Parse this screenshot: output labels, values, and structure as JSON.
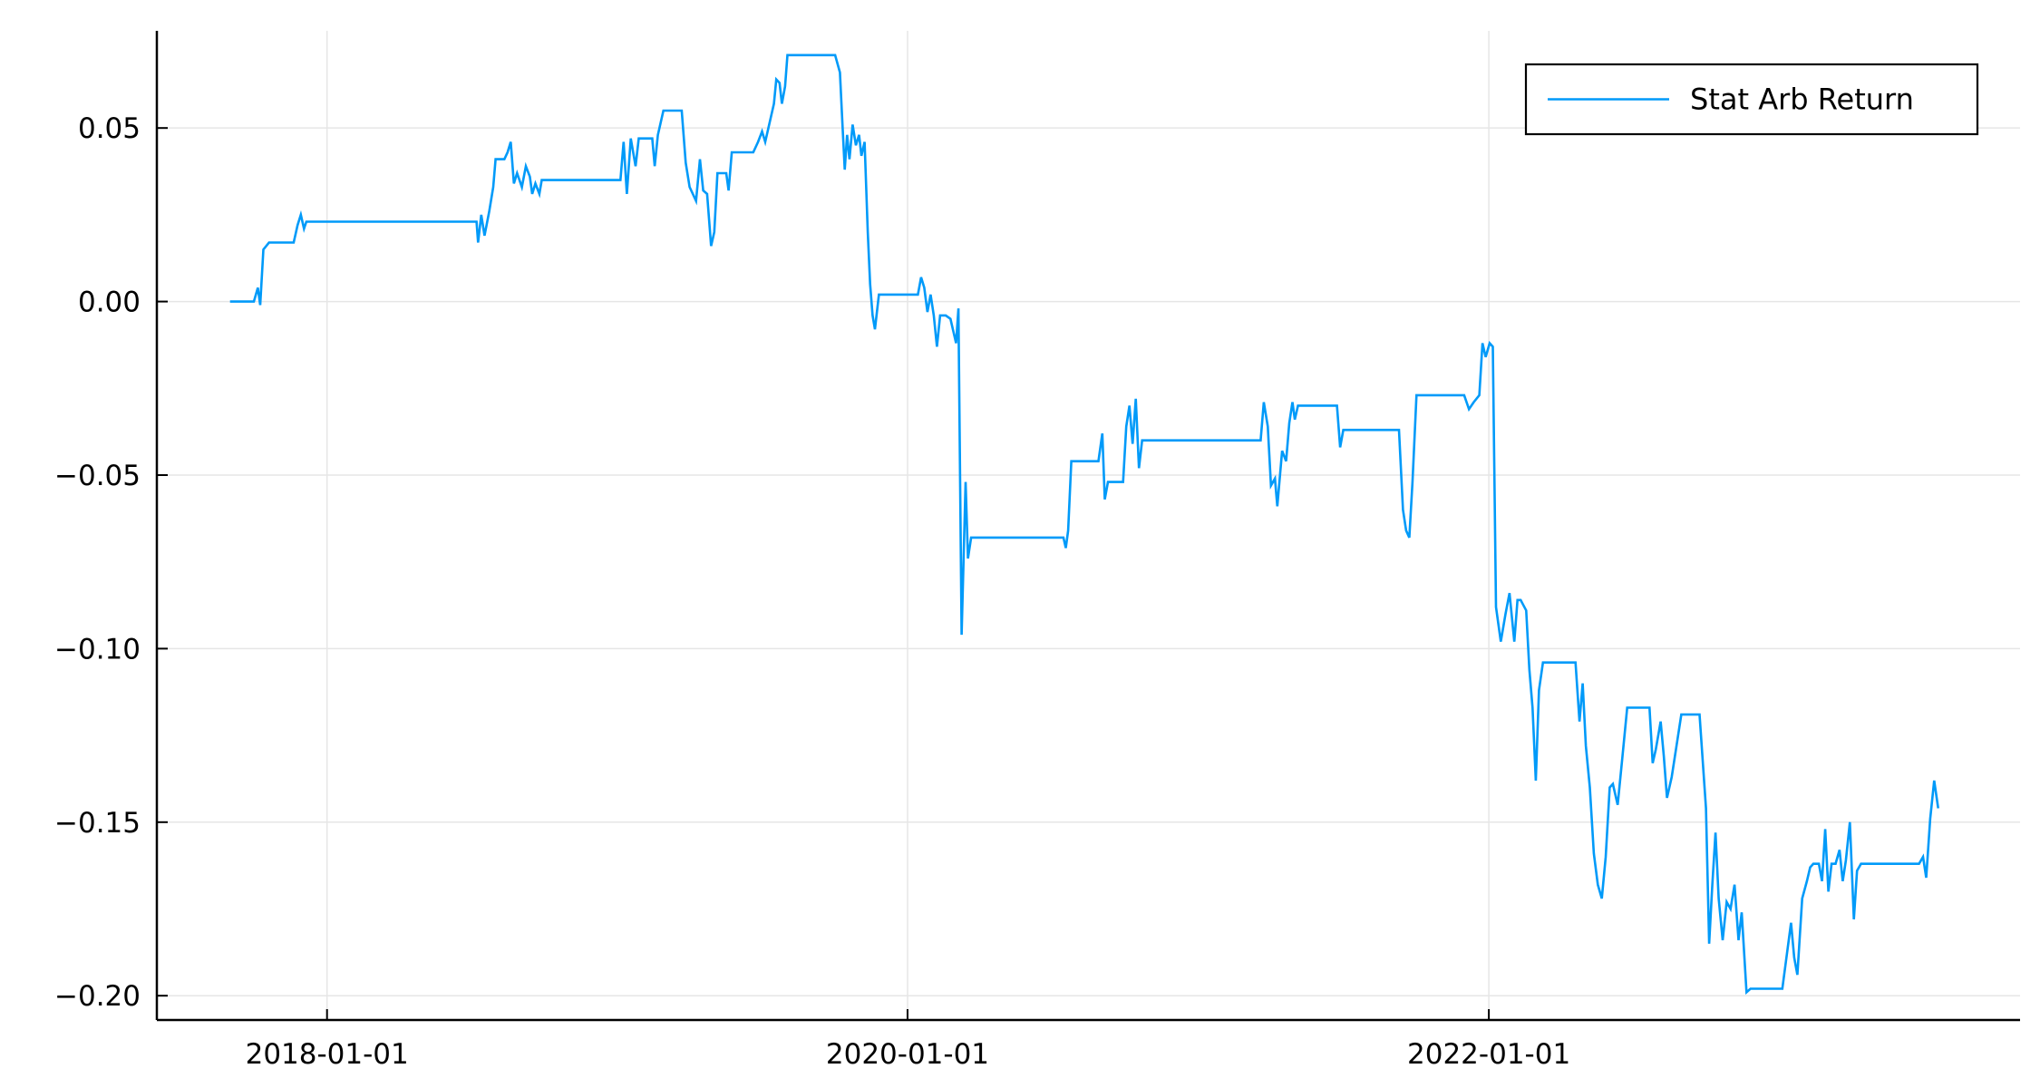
{
  "chart_data": {
    "type": "line",
    "title": "",
    "xlabel": "",
    "ylabel": "",
    "x_axis_type": "date",
    "xlim": [
      "2017-06-01",
      "2023-10-31"
    ],
    "ylim": [
      -0.207,
      0.078
    ],
    "x_ticks": [
      "2018-01-01",
      "2020-01-01",
      "2022-01-01"
    ],
    "x_tick_labels": [
      "2018-01-01",
      "2020-01-01",
      "2022-01-01"
    ],
    "y_ticks": [
      0.05,
      0.0,
      -0.05,
      -0.1,
      -0.15,
      -0.2
    ],
    "y_tick_labels": [
      "0.05",
      "0.00",
      "−0.05",
      "−0.10",
      "−0.15",
      "−0.20"
    ],
    "grid": true,
    "legend_position": "top-right",
    "colors": {
      "series": "#009af9",
      "axis": "#000000",
      "grid": "#e6e6e6"
    },
    "series": [
      {
        "name": "Stat Arb Return",
        "points": [
          [
            "2017-09-01",
            0.0
          ],
          [
            "2017-10-01",
            0.0
          ],
          [
            "2017-10-06",
            0.004
          ],
          [
            "2017-10-09",
            -0.001
          ],
          [
            "2017-10-13",
            0.015
          ],
          [
            "2017-10-20",
            0.017
          ],
          [
            "2017-11-15",
            0.017
          ],
          [
            "2017-11-20",
            0.017
          ],
          [
            "2017-11-25",
            0.022
          ],
          [
            "2017-11-29",
            0.025
          ],
          [
            "2017-12-03",
            0.021
          ],
          [
            "2017-12-06",
            0.023
          ],
          [
            "2018-03-01",
            0.023
          ],
          [
            "2018-06-01",
            0.023
          ],
          [
            "2018-07-08",
            0.023
          ],
          [
            "2018-07-10",
            0.017
          ],
          [
            "2018-07-14",
            0.025
          ],
          [
            "2018-07-18",
            0.019
          ],
          [
            "2018-07-24",
            0.026
          ],
          [
            "2018-07-29",
            0.033
          ],
          [
            "2018-08-01",
            0.041
          ],
          [
            "2018-08-12",
            0.041
          ],
          [
            "2018-08-16",
            0.043
          ],
          [
            "2018-08-20",
            0.046
          ],
          [
            "2018-08-24",
            0.034
          ],
          [
            "2018-08-28",
            0.037
          ],
          [
            "2018-09-03",
            0.033
          ],
          [
            "2018-09-08",
            0.039
          ],
          [
            "2018-09-13",
            0.036
          ],
          [
            "2018-09-16",
            0.031
          ],
          [
            "2018-09-20",
            0.034
          ],
          [
            "2018-09-25",
            0.031
          ],
          [
            "2018-09-28",
            0.035
          ],
          [
            "2018-12-01",
            0.035
          ],
          [
            "2019-01-05",
            0.035
          ],
          [
            "2019-01-09",
            0.046
          ],
          [
            "2019-01-13",
            0.031
          ],
          [
            "2019-01-18",
            0.047
          ],
          [
            "2019-01-24",
            0.039
          ],
          [
            "2019-01-28",
            0.047
          ],
          [
            "2019-02-05",
            0.047
          ],
          [
            "2019-02-14",
            0.047
          ],
          [
            "2019-02-17",
            0.039
          ],
          [
            "2019-02-21",
            0.048
          ],
          [
            "2019-02-28",
            0.055
          ],
          [
            "2019-03-23",
            0.055
          ],
          [
            "2019-03-28",
            0.04
          ],
          [
            "2019-04-02",
            0.033
          ],
          [
            "2019-04-10",
            0.029
          ],
          [
            "2019-04-15",
            0.041
          ],
          [
            "2019-04-19",
            0.032
          ],
          [
            "2019-04-24",
            0.031
          ],
          [
            "2019-04-29",
            0.016
          ],
          [
            "2019-05-03",
            0.02
          ],
          [
            "2019-05-07",
            0.037
          ],
          [
            "2019-05-18",
            0.037
          ],
          [
            "2019-05-21",
            0.032
          ],
          [
            "2019-05-25",
            0.043
          ],
          [
            "2019-06-21",
            0.043
          ],
          [
            "2019-06-27",
            0.046
          ],
          [
            "2019-07-02",
            0.049
          ],
          [
            "2019-07-06",
            0.046
          ],
          [
            "2019-07-10",
            0.05
          ],
          [
            "2019-07-17",
            0.057
          ],
          [
            "2019-07-20",
            0.064
          ],
          [
            "2019-07-24",
            0.063
          ],
          [
            "2019-07-27",
            0.057
          ],
          [
            "2019-07-31",
            0.062
          ],
          [
            "2019-08-03",
            0.071
          ],
          [
            "2019-09-16",
            0.071
          ],
          [
            "2019-10-02",
            0.071
          ],
          [
            "2019-10-08",
            0.066
          ],
          [
            "2019-10-11",
            0.052
          ],
          [
            "2019-10-14",
            0.038
          ],
          [
            "2019-10-17",
            0.048
          ],
          [
            "2019-10-20",
            0.041
          ],
          [
            "2019-10-24",
            0.051
          ],
          [
            "2019-10-28",
            0.045
          ],
          [
            "2019-11-01",
            0.048
          ],
          [
            "2019-11-04",
            0.042
          ],
          [
            "2019-11-08",
            0.046
          ],
          [
            "2019-11-12",
            0.02
          ],
          [
            "2019-11-15",
            0.005
          ],
          [
            "2019-11-18",
            -0.004
          ],
          [
            "2019-11-21",
            -0.008
          ],
          [
            "2019-11-26",
            0.002
          ],
          [
            "2020-01-08",
            0.002
          ],
          [
            "2020-01-14",
            0.002
          ],
          [
            "2020-01-18",
            0.007
          ],
          [
            "2020-01-22",
            0.004
          ],
          [
            "2020-01-26",
            -0.003
          ],
          [
            "2020-01-30",
            0.002
          ],
          [
            "2020-02-03",
            -0.004
          ],
          [
            "2020-02-07",
            -0.013
          ],
          [
            "2020-02-11",
            -0.004
          ],
          [
            "2020-02-18",
            -0.004
          ],
          [
            "2020-02-24",
            -0.005
          ],
          [
            "2020-03-02",
            -0.012
          ],
          [
            "2020-03-05",
            -0.002
          ],
          [
            "2020-03-09",
            -0.096
          ],
          [
            "2020-03-14",
            -0.052
          ],
          [
            "2020-03-17",
            -0.074
          ],
          [
            "2020-03-21",
            -0.068
          ],
          [
            "2020-07-15",
            -0.068
          ],
          [
            "2020-07-18",
            -0.071
          ],
          [
            "2020-07-21",
            -0.066
          ],
          [
            "2020-07-25",
            -0.046
          ],
          [
            "2020-08-28",
            -0.046
          ],
          [
            "2020-09-02",
            -0.038
          ],
          [
            "2020-09-05",
            -0.057
          ],
          [
            "2020-09-09",
            -0.052
          ],
          [
            "2020-09-28",
            -0.052
          ],
          [
            "2020-10-02",
            -0.036
          ],
          [
            "2020-10-06",
            -0.03
          ],
          [
            "2020-10-10",
            -0.041
          ],
          [
            "2020-10-14",
            -0.028
          ],
          [
            "2020-10-18",
            -0.048
          ],
          [
            "2020-10-22",
            -0.04
          ],
          [
            "2021-01-15",
            -0.04
          ],
          [
            "2021-03-20",
            -0.04
          ],
          [
            "2021-03-24",
            -0.029
          ],
          [
            "2021-03-29",
            -0.036
          ],
          [
            "2021-04-02",
            -0.053
          ],
          [
            "2021-04-07",
            -0.051
          ],
          [
            "2021-04-10",
            -0.059
          ],
          [
            "2021-04-16",
            -0.043
          ],
          [
            "2021-04-21",
            -0.046
          ],
          [
            "2021-04-25",
            -0.035
          ],
          [
            "2021-04-29",
            -0.029
          ],
          [
            "2021-05-02",
            -0.034
          ],
          [
            "2021-05-06",
            -0.03
          ],
          [
            "2021-06-15",
            -0.03
          ],
          [
            "2021-06-24",
            -0.03
          ],
          [
            "2021-06-28",
            -0.042
          ],
          [
            "2021-07-02",
            -0.037
          ],
          [
            "2021-08-15",
            -0.037
          ],
          [
            "2021-09-10",
            -0.037
          ],
          [
            "2021-09-15",
            -0.06
          ],
          [
            "2021-09-19",
            -0.066
          ],
          [
            "2021-09-23",
            -0.068
          ],
          [
            "2021-09-27",
            -0.052
          ],
          [
            "2021-10-02",
            -0.027
          ],
          [
            "2021-12-01",
            -0.027
          ],
          [
            "2021-12-07",
            -0.031
          ],
          [
            "2021-12-13",
            -0.029
          ],
          [
            "2021-12-20",
            -0.027
          ],
          [
            "2021-12-24",
            -0.012
          ],
          [
            "2021-12-28",
            -0.016
          ],
          [
            "2022-01-02",
            -0.012
          ],
          [
            "2022-01-06",
            -0.013
          ],
          [
            "2022-01-10",
            -0.088
          ],
          [
            "2022-01-16",
            -0.098
          ],
          [
            "2022-01-22",
            -0.09
          ],
          [
            "2022-01-27",
            -0.084
          ],
          [
            "2022-02-02",
            -0.098
          ],
          [
            "2022-02-06",
            -0.086
          ],
          [
            "2022-02-10",
            -0.086
          ],
          [
            "2022-02-17",
            -0.089
          ],
          [
            "2022-02-21",
            -0.106
          ],
          [
            "2022-02-25",
            -0.117
          ],
          [
            "2022-03-01",
            -0.138
          ],
          [
            "2022-03-05",
            -0.112
          ],
          [
            "2022-03-10",
            -0.104
          ],
          [
            "2022-04-20",
            -0.104
          ],
          [
            "2022-04-25",
            -0.121
          ],
          [
            "2022-04-29",
            -0.11
          ],
          [
            "2022-05-03",
            -0.128
          ],
          [
            "2022-05-08",
            -0.14
          ],
          [
            "2022-05-13",
            -0.159
          ],
          [
            "2022-05-18",
            -0.168
          ],
          [
            "2022-05-23",
            -0.172
          ],
          [
            "2022-05-28",
            -0.16
          ],
          [
            "2022-06-02",
            -0.14
          ],
          [
            "2022-06-06",
            -0.139
          ],
          [
            "2022-06-12",
            -0.145
          ],
          [
            "2022-06-18",
            -0.131
          ],
          [
            "2022-06-24",
            -0.117
          ],
          [
            "2022-07-22",
            -0.117
          ],
          [
            "2022-07-26",
            -0.133
          ],
          [
            "2022-07-30",
            -0.129
          ],
          [
            "2022-08-05",
            -0.121
          ],
          [
            "2022-08-09",
            -0.131
          ],
          [
            "2022-08-13",
            -0.143
          ],
          [
            "2022-08-19",
            -0.137
          ],
          [
            "2022-08-25",
            -0.128
          ],
          [
            "2022-08-31",
            -0.119
          ],
          [
            "2022-09-23",
            -0.119
          ],
          [
            "2022-10-01",
            -0.146
          ],
          [
            "2022-10-05",
            -0.185
          ],
          [
            "2022-10-09",
            -0.168
          ],
          [
            "2022-10-13",
            -0.153
          ],
          [
            "2022-10-17",
            -0.172
          ],
          [
            "2022-10-22",
            -0.184
          ],
          [
            "2022-10-27",
            -0.173
          ],
          [
            "2022-11-01",
            -0.175
          ],
          [
            "2022-11-06",
            -0.168
          ],
          [
            "2022-11-11",
            -0.184
          ],
          [
            "2022-11-15",
            -0.176
          ],
          [
            "2022-11-21",
            -0.199
          ],
          [
            "2022-11-26",
            -0.198
          ],
          [
            "2023-01-05",
            -0.198
          ],
          [
            "2023-01-16",
            -0.179
          ],
          [
            "2023-01-20",
            -0.189
          ],
          [
            "2023-01-24",
            -0.194
          ],
          [
            "2023-01-30",
            -0.172
          ],
          [
            "2023-02-05",
            -0.167
          ],
          [
            "2023-02-09",
            -0.163
          ],
          [
            "2023-02-13",
            -0.162
          ],
          [
            "2023-02-20",
            -0.162
          ],
          [
            "2023-02-24",
            -0.167
          ],
          [
            "2023-02-28",
            -0.152
          ],
          [
            "2023-03-04",
            -0.17
          ],
          [
            "2023-03-08",
            -0.162
          ],
          [
            "2023-03-13",
            -0.162
          ],
          [
            "2023-03-18",
            -0.158
          ],
          [
            "2023-03-22",
            -0.167
          ],
          [
            "2023-03-26",
            -0.161
          ],
          [
            "2023-03-31",
            -0.15
          ],
          [
            "2023-04-05",
            -0.178
          ],
          [
            "2023-04-09",
            -0.164
          ],
          [
            "2023-04-14",
            -0.162
          ],
          [
            "2023-06-26",
            -0.162
          ],
          [
            "2023-07-01",
            -0.16
          ],
          [
            "2023-07-05",
            -0.166
          ],
          [
            "2023-07-10",
            -0.149
          ],
          [
            "2023-07-15",
            -0.138
          ],
          [
            "2023-07-20",
            -0.146
          ]
        ]
      }
    ]
  }
}
